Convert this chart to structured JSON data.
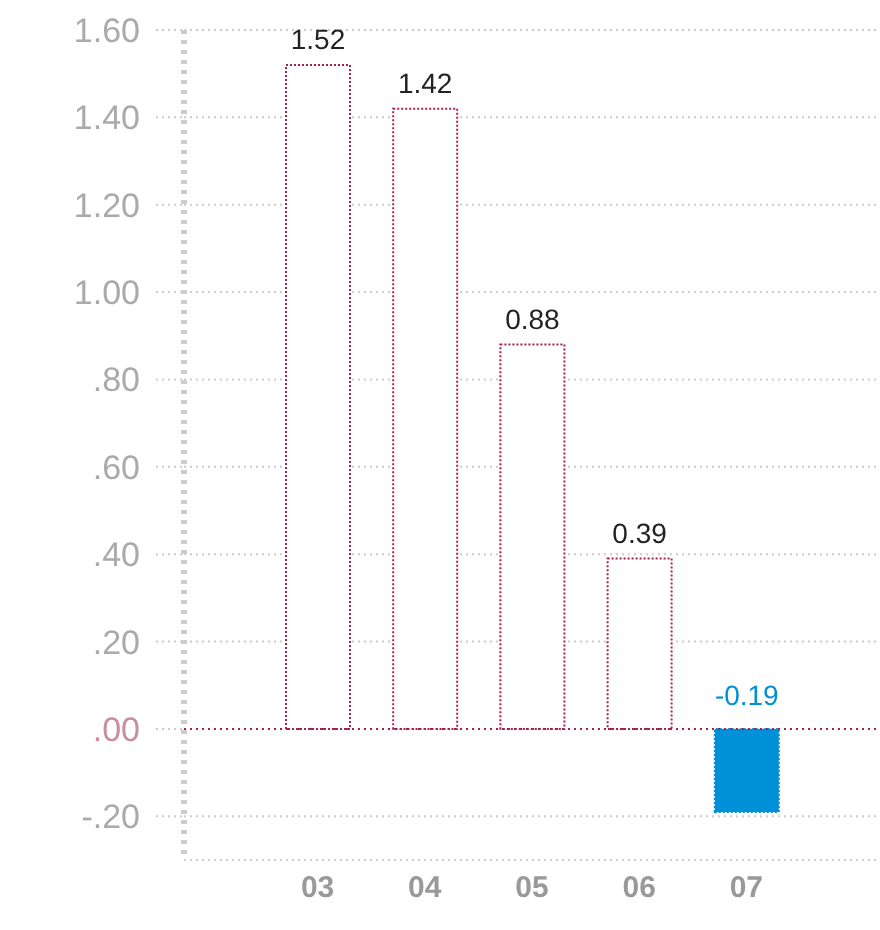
{
  "chart_data": {
    "type": "bar",
    "categories": [
      "03",
      "04",
      "05",
      "06",
      "07"
    ],
    "values": [
      1.52,
      1.42,
      0.88,
      0.39,
      -0.19
    ],
    "colors": [
      "#a8204a",
      "#a8204a",
      "#a8204a",
      "#a8204a",
      "#0090d8"
    ],
    "ylim": [
      -0.3,
      1.6
    ],
    "yticks": [
      {
        "value": -0.2,
        "label": "-.20"
      },
      {
        "value": 0,
        "label": ".00"
      },
      {
        "value": 0.2,
        "label": ".20"
      },
      {
        "value": 0.4,
        "label": ".40"
      },
      {
        "value": 0.6,
        "label": ".60"
      },
      {
        "value": 0.8,
        "label": ".80"
      },
      {
        "value": 1,
        "label": "1.00"
      },
      {
        "value": 1.2,
        "label": "1.20"
      },
      {
        "value": 1.4,
        "label": "1.40"
      },
      {
        "value": 1.6,
        "label": "1.60"
      }
    ],
    "ref_lines": [
      {
        "axis": "y",
        "value": 0,
        "color": "#a8204a",
        "line_style": "dotted"
      }
    ],
    "grid": "y",
    "data_labels": true
  }
}
